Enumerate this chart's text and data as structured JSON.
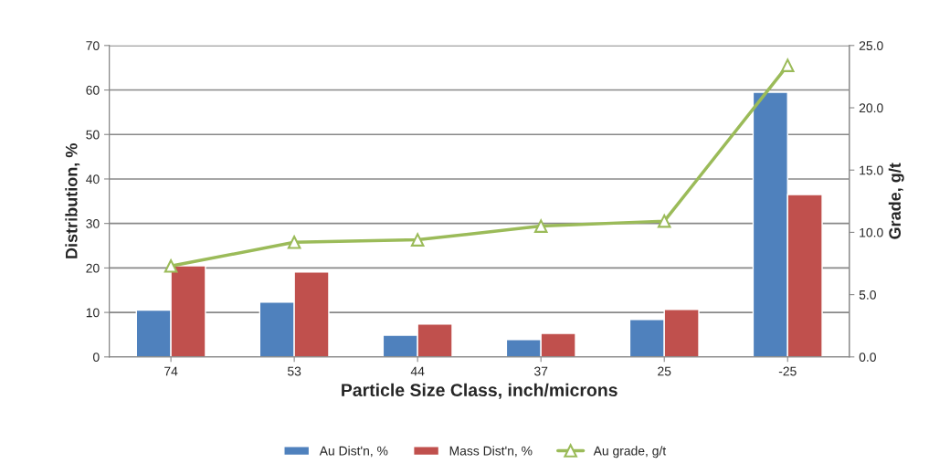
{
  "chart_data": {
    "type": "bar",
    "xlabel": "Particle Size Class, inch/microns",
    "ylabel": "Distribution, %",
    "y2label": "Grade, g/t",
    "categories": [
      "74",
      "53",
      "44",
      "37",
      "25",
      "-25"
    ],
    "series": [
      {
        "name": "Au Dist'n, %",
        "color": "#4f81bd",
        "values": [
          10.5,
          12.3,
          4.9,
          3.9,
          8.4,
          59.5
        ]
      },
      {
        "name": "Mass Dist'n, %",
        "color": "#c0504d",
        "values": [
          20.5,
          19.1,
          7.4,
          5.3,
          10.7,
          36.5
        ]
      },
      {
        "name": "Au grade, g/t",
        "type": "line",
        "axis": "y2",
        "marker": "triangle",
        "color": "#9bbb59",
        "values": [
          7.3,
          9.2,
          9.4,
          10.5,
          10.9,
          23.4
        ]
      }
    ],
    "ylim": [
      0,
      70
    ],
    "yticks": [
      0,
      10,
      20,
      30,
      40,
      50,
      60,
      70
    ],
    "y2lim": [
      0,
      25
    ],
    "y2ticks": [
      {
        "value": 0,
        "label": "0.0"
      },
      {
        "value": 5,
        "label": "5.0"
      },
      {
        "value": 10,
        "label": "10.0"
      },
      {
        "value": 15,
        "label": "15.0"
      },
      {
        "value": 20,
        "label": "20.0"
      },
      {
        "value": 25,
        "label": "25.0"
      }
    ],
    "grid": "y",
    "legend": "bottom"
  }
}
